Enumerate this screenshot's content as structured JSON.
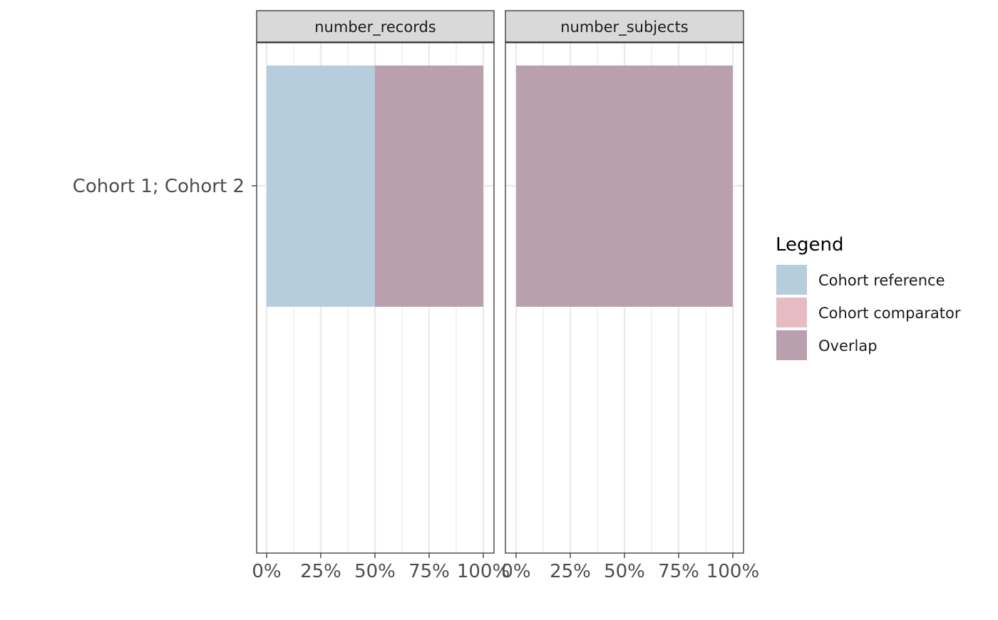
{
  "chart_data": {
    "type": "bar",
    "orientation": "horizontal",
    "stacked": true,
    "categories": [
      "Cohort 1; Cohort 2"
    ],
    "facets": [
      {
        "label": "number_records",
        "series": [
          {
            "name": "Cohort reference",
            "values": [
              50
            ]
          },
          {
            "name": "Cohort comparator",
            "values": [
              0
            ]
          },
          {
            "name": "Overlap",
            "values": [
              50
            ]
          }
        ]
      },
      {
        "label": "number_subjects",
        "series": [
          {
            "name": "Cohort reference",
            "values": [
              0
            ]
          },
          {
            "name": "Cohort comparator",
            "values": [
              0
            ]
          },
          {
            "name": "Overlap",
            "values": [
              100
            ]
          }
        ]
      }
    ],
    "x_ticks": [
      "0%",
      "25%",
      "50%",
      "75%",
      "100%"
    ],
    "xlim": [
      0,
      100
    ],
    "xlabel": "",
    "ylabel": "",
    "grid": true,
    "legend": {
      "title": "Legend",
      "placement": "right",
      "entries": [
        {
          "name": "Cohort reference",
          "color": "#b5cddc"
        },
        {
          "name": "Cohort comparator",
          "color": "#e6bcc2"
        },
        {
          "name": "Overlap",
          "color": "#baa0ac"
        }
      ]
    }
  }
}
